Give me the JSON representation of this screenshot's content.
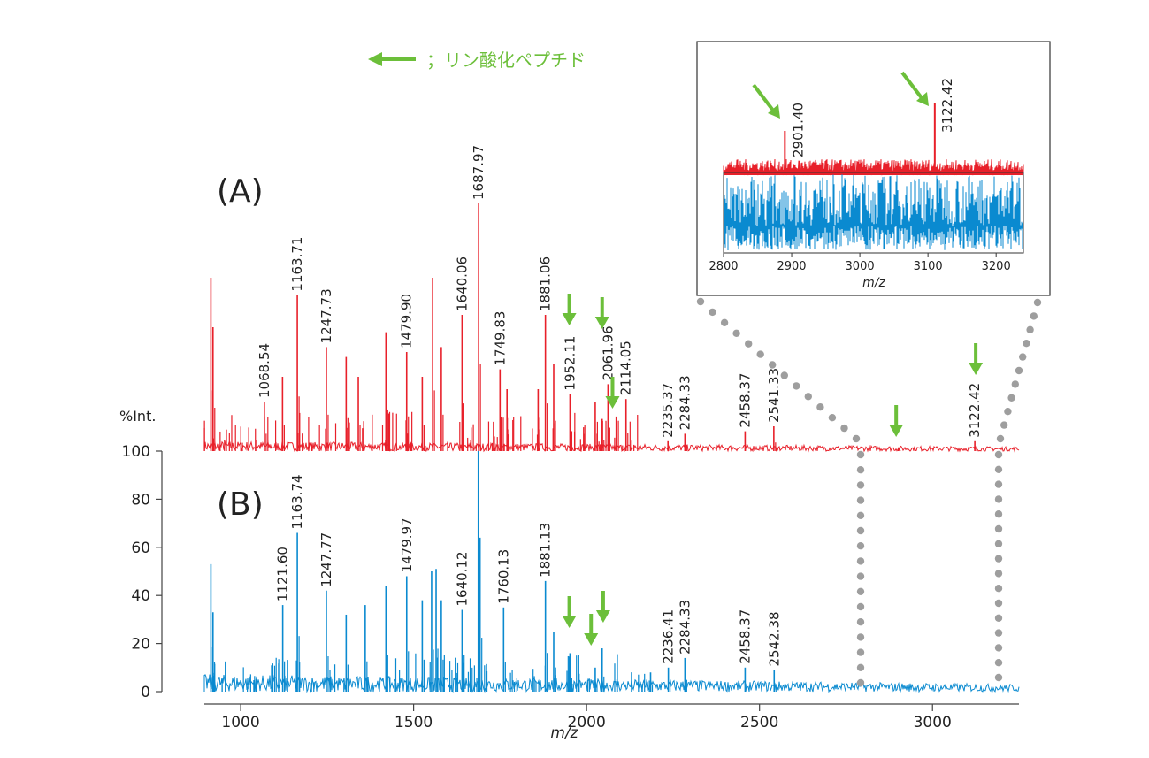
{
  "legend": {
    "text": "；リン酸化ペプチド",
    "arrow_color": "#6cbf3a"
  },
  "colors": {
    "red": "#e8202a",
    "blue": "#0a8ad0",
    "green": "#6cbf3a",
    "dots": "#9e9e9e"
  },
  "y_axis": {
    "label": "%Int.",
    "ticks": [
      0,
      20,
      40,
      60,
      80,
      100
    ],
    "ylim": [
      0,
      100
    ]
  },
  "chart_data": [
    {
      "type": "line",
      "title": "",
      "xlabel": "m/z",
      "ylabel": "%Int.",
      "xlim": [
        895,
        3250
      ],
      "ylim": [
        0,
        100
      ],
      "x_ticks": [
        1000,
        1500,
        2000,
        2500,
        3000
      ],
      "series": [
        {
          "name": "(A)",
          "color": "#e8202a",
          "peaks": [
            {
              "x": 914,
              "y": 70
            },
            {
              "x": 920,
              "y": 50
            },
            {
              "x": 1068.54,
              "y": 20
            },
            {
              "x": 1121,
              "y": 30
            },
            {
              "x": 1163.71,
              "y": 63
            },
            {
              "x": 1247.73,
              "y": 42
            },
            {
              "x": 1305,
              "y": 38
            },
            {
              "x": 1340,
              "y": 30
            },
            {
              "x": 1420,
              "y": 48
            },
            {
              "x": 1479.9,
              "y": 40
            },
            {
              "x": 1525,
              "y": 30
            },
            {
              "x": 1555,
              "y": 70
            },
            {
              "x": 1580,
              "y": 42
            },
            {
              "x": 1640.06,
              "y": 55
            },
            {
              "x": 1687.97,
              "y": 100
            },
            {
              "x": 1749.83,
              "y": 33
            },
            {
              "x": 1770,
              "y": 25
            },
            {
              "x": 1860,
              "y": 25
            },
            {
              "x": 1881.06,
              "y": 55
            },
            {
              "x": 1905,
              "y": 35
            },
            {
              "x": 1952.11,
              "y": 23
            },
            {
              "x": 2025,
              "y": 20
            },
            {
              "x": 2045,
              "y": 13
            },
            {
              "x": 2061.96,
              "y": 27
            },
            {
              "x": 2114.05,
              "y": 21
            },
            {
              "x": 2235.37,
              "y": 4
            },
            {
              "x": 2284.33,
              "y": 7
            },
            {
              "x": 2458.37,
              "y": 8
            },
            {
              "x": 2541.33,
              "y": 10
            },
            {
              "x": 2901.4,
              "y": 1
            },
            {
              "x": 3122.42,
              "y": 4
            }
          ],
          "labels": [
            "1068.54",
            "1163.71",
            "1247.73",
            "1479.90",
            "1640.06",
            "1687.97",
            "1749.83",
            "1881.06",
            "1952.11",
            "2061.96",
            "2114.05",
            "2235.37",
            "2284.33",
            "2458.37",
            "2541.33",
            "3122.42"
          ],
          "phospho_arrows": [
            1950,
            2045,
            2075,
            2895,
            3125
          ]
        },
        {
          "name": "(B)",
          "color": "#0a8ad0",
          "peaks": [
            {
              "x": 914,
              "y": 53
            },
            {
              "x": 920,
              "y": 33
            },
            {
              "x": 1121.6,
              "y": 36
            },
            {
              "x": 1163.74,
              "y": 66
            },
            {
              "x": 1247.77,
              "y": 42
            },
            {
              "x": 1305,
              "y": 32
            },
            {
              "x": 1360,
              "y": 36
            },
            {
              "x": 1420,
              "y": 44
            },
            {
              "x": 1479.97,
              "y": 48
            },
            {
              "x": 1525,
              "y": 38
            },
            {
              "x": 1552,
              "y": 50
            },
            {
              "x": 1565,
              "y": 51
            },
            {
              "x": 1580,
              "y": 38
            },
            {
              "x": 1640.12,
              "y": 34
            },
            {
              "x": 1687,
              "y": 100
            },
            {
              "x": 1692,
              "y": 64
            },
            {
              "x": 1760.13,
              "y": 35
            },
            {
              "x": 1881.13,
              "y": 46
            },
            {
              "x": 1905,
              "y": 25
            },
            {
              "x": 1952,
              "y": 16
            },
            {
              "x": 2025,
              "y": 10
            },
            {
              "x": 2045,
              "y": 18
            },
            {
              "x": 2185,
              "y": 8
            },
            {
              "x": 2236.41,
              "y": 10
            },
            {
              "x": 2284.33,
              "y": 14
            },
            {
              "x": 2458.37,
              "y": 10
            },
            {
              "x": 2542.38,
              "y": 9
            }
          ],
          "labels": [
            "1121.60",
            "1163.74",
            "1247.77",
            "1479.97",
            "1640.12",
            "1760.13",
            "1881.13",
            "2236.41",
            "2284.33",
            "2458.37",
            "2542.38"
          ],
          "phospho_arrows": [
            1950,
            2013,
            2048
          ]
        }
      ]
    },
    {
      "type": "line",
      "title": "",
      "xlabel": "m/z",
      "xlim": [
        2800,
        3240
      ],
      "x_ticks": [
        2800,
        2900,
        3000,
        3100,
        3200
      ],
      "series": [
        {
          "name": "(A)",
          "color": "#e8202a",
          "peaks": [
            {
              "x": 2890,
              "y": 2901.4
            },
            {
              "x": 3110,
              "y": 3122.42
            }
          ],
          "labels": [
            "2901.40",
            "3122.42"
          ],
          "phospho_arrows": [
            2890,
            3110
          ]
        },
        {
          "name": "(B)",
          "color": "#0a8ad0"
        }
      ]
    }
  ]
}
